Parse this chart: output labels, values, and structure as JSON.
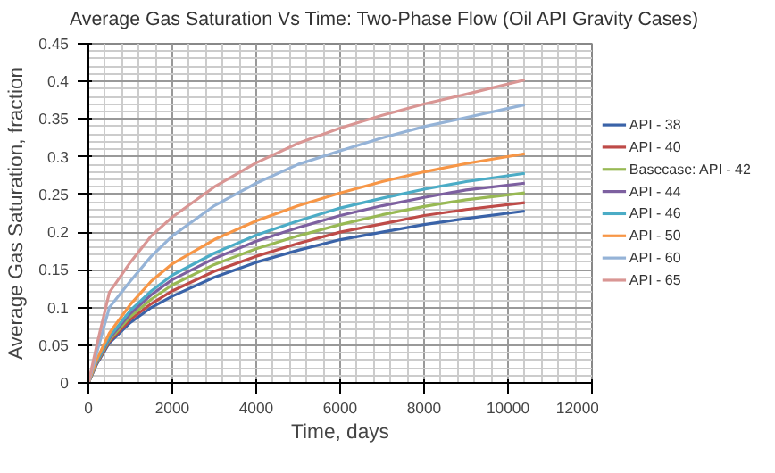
{
  "chart_data": {
    "type": "line",
    "title": "Average Gas Saturation Vs Time: Two-Phase Flow (Oil API Gravity Cases)",
    "xlabel": "Time, days",
    "ylabel": "Average Gas Saturation, fraction",
    "x": [
      0,
      200,
      500,
      1000,
      1500,
      2000,
      3000,
      4000,
      5000,
      6000,
      7000,
      8000,
      9000,
      10400
    ],
    "xlim": [
      0,
      12000
    ],
    "xticks": [
      0,
      2000,
      4000,
      6000,
      8000,
      10000,
      12000
    ],
    "ylim": [
      0,
      0.45
    ],
    "yticks": [
      0,
      0.05,
      0.1,
      0.15,
      0.2,
      0.25,
      0.3,
      0.35,
      0.4,
      0.45
    ],
    "grid": true,
    "legend": "right",
    "line_style": "solid",
    "series": [
      {
        "name": "API - 38",
        "color": "#3a63a8",
        "values": [
          0,
          0.025,
          0.053,
          0.08,
          0.1,
          0.115,
          0.14,
          0.16,
          0.176,
          0.19,
          0.2,
          0.21,
          0.218,
          0.228
        ]
      },
      {
        "name": "API - 40",
        "color": "#be4b48",
        "values": [
          0,
          0.026,
          0.055,
          0.084,
          0.105,
          0.122,
          0.148,
          0.168,
          0.185,
          0.2,
          0.211,
          0.222,
          0.23,
          0.239
        ]
      },
      {
        "name": "Basecase: API - 42",
        "color": "#98b954",
        "values": [
          0,
          0.027,
          0.057,
          0.088,
          0.111,
          0.13,
          0.157,
          0.178,
          0.195,
          0.21,
          0.223,
          0.234,
          0.243,
          0.252
        ]
      },
      {
        "name": "API - 44",
        "color": "#7d60a0",
        "values": [
          0,
          0.028,
          0.059,
          0.092,
          0.117,
          0.137,
          0.165,
          0.188,
          0.206,
          0.222,
          0.235,
          0.246,
          0.256,
          0.265
        ]
      },
      {
        "name": "API - 46",
        "color": "#4bacc6",
        "values": [
          0,
          0.029,
          0.061,
          0.096,
          0.122,
          0.143,
          0.172,
          0.196,
          0.215,
          0.232,
          0.245,
          0.257,
          0.267,
          0.278
        ]
      },
      {
        "name": "API - 50",
        "color": "#f79646",
        "values": [
          0,
          0.031,
          0.066,
          0.104,
          0.135,
          0.158,
          0.19,
          0.215,
          0.235,
          0.252,
          0.267,
          0.28,
          0.291,
          0.304
        ]
      },
      {
        "name": "API - 60",
        "color": "#95b3d7",
        "values": [
          0,
          0.04,
          0.1,
          0.135,
          0.168,
          0.195,
          0.235,
          0.265,
          0.29,
          0.308,
          0.325,
          0.34,
          0.352,
          0.369
        ]
      },
      {
        "name": "API - 65",
        "color": "#d99694",
        "values": [
          0,
          0.05,
          0.12,
          0.16,
          0.195,
          0.22,
          0.26,
          0.292,
          0.318,
          0.338,
          0.355,
          0.37,
          0.383,
          0.402
        ]
      }
    ]
  }
}
